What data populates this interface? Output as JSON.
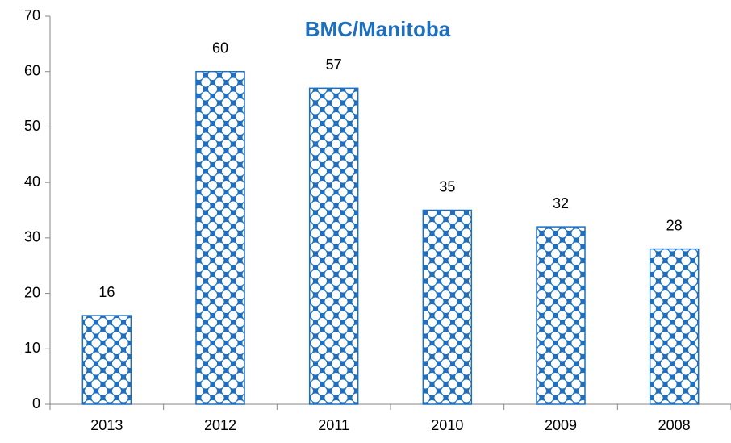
{
  "chart_data": {
    "type": "bar",
    "title": "BMC/Manitoba",
    "categories": [
      "2013",
      "2012",
      "2011",
      "2010",
      "2009",
      "2008"
    ],
    "values": [
      16,
      60,
      57,
      35,
      32,
      28
    ],
    "color": "#1f6fbf",
    "ylim": [
      0,
      70
    ],
    "yticks": [
      0,
      10,
      20,
      30,
      40,
      50,
      60,
      70
    ],
    "grid": false
  }
}
